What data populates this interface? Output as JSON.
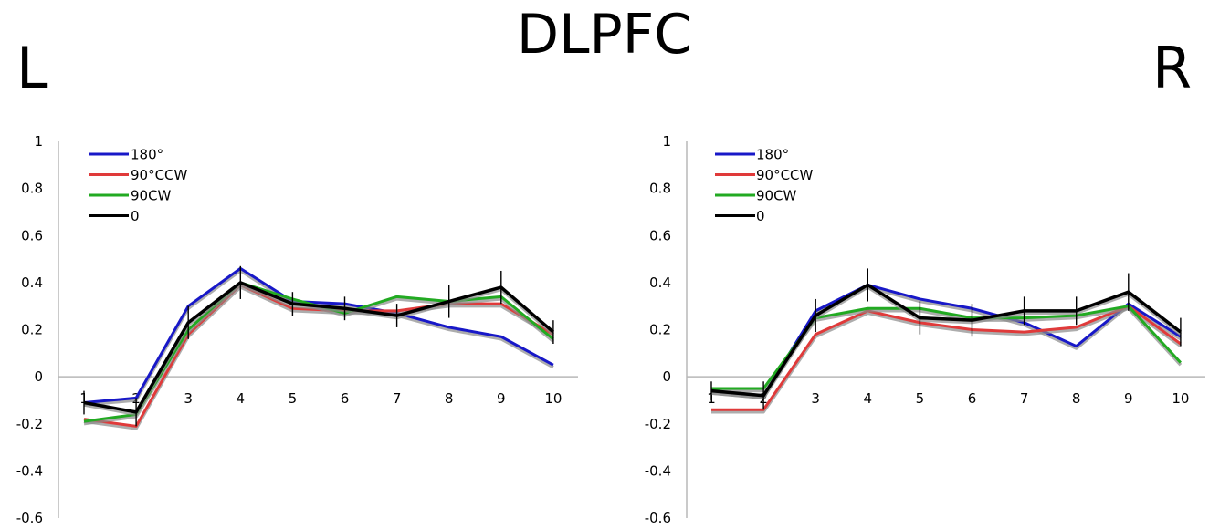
{
  "title": "DLPFC",
  "side_labels": {
    "left": "L",
    "right": "R"
  },
  "colors": {
    "180°": "#1818c8",
    "90°CCW": "#e03a3a",
    "90CW": "#22aa22",
    "0": "#000000",
    "shadow": "#8a8a8a"
  },
  "chart_data": [
    {
      "type": "line",
      "panel": "L",
      "x": [
        1,
        2,
        3,
        4,
        5,
        6,
        7,
        8,
        9,
        10
      ],
      "ylim": [
        -0.6,
        1
      ],
      "yticks": [
        "1",
        "0.8",
        "0.6",
        "0.4",
        "0.2",
        "0",
        "-0.2",
        "-0.4",
        "-0.6"
      ],
      "xticks": [
        "1",
        "2",
        "3",
        "4",
        "5",
        "6",
        "7",
        "8",
        "9",
        "10"
      ],
      "legend_position": "top-left",
      "series": [
        {
          "name": "180°",
          "values": [
            -0.11,
            -0.09,
            0.3,
            0.46,
            0.32,
            0.31,
            0.27,
            0.21,
            0.17,
            0.05
          ]
        },
        {
          "name": "90°CCW",
          "values": [
            -0.18,
            -0.21,
            0.18,
            0.39,
            0.29,
            0.28,
            0.28,
            0.31,
            0.31,
            0.18
          ]
        },
        {
          "name": "90CW",
          "values": [
            -0.19,
            -0.16,
            0.2,
            0.4,
            0.33,
            0.27,
            0.34,
            0.32,
            0.34,
            0.16
          ]
        },
        {
          "name": "0",
          "values": [
            -0.11,
            -0.15,
            0.23,
            0.4,
            0.31,
            0.29,
            0.26,
            0.32,
            0.38,
            0.19
          ]
        }
      ],
      "error": [
        0.05,
        0.06,
        0.07,
        0.07,
        0.05,
        0.05,
        0.05,
        0.07,
        0.07,
        0.05
      ]
    },
    {
      "type": "line",
      "panel": "R",
      "x": [
        1,
        2,
        3,
        4,
        5,
        6,
        7,
        8,
        9,
        10
      ],
      "ylim": [
        -0.6,
        1
      ],
      "yticks": [
        "1",
        "0.8",
        "0.6",
        "0.4",
        "0.2",
        "0",
        "-0.2",
        "-0.4",
        "-0.6"
      ],
      "xticks": [
        "1",
        "2",
        "3",
        "4",
        "5",
        "6",
        "7",
        "8",
        "9",
        "10"
      ],
      "legend_position": "top-left",
      "series": [
        {
          "name": "180°",
          "values": [
            -0.06,
            -0.08,
            0.28,
            0.39,
            0.33,
            0.29,
            0.23,
            0.13,
            0.31,
            0.17
          ]
        },
        {
          "name": "90°CCW",
          "values": [
            -0.14,
            -0.14,
            0.18,
            0.28,
            0.23,
            0.2,
            0.19,
            0.21,
            0.3,
            0.14
          ]
        },
        {
          "name": "90CW",
          "values": [
            -0.05,
            -0.05,
            0.25,
            0.29,
            0.29,
            0.25,
            0.25,
            0.26,
            0.3,
            0.06
          ]
        },
        {
          "name": "0",
          "values": [
            -0.06,
            -0.08,
            0.26,
            0.39,
            0.25,
            0.24,
            0.28,
            0.28,
            0.36,
            0.19
          ]
        }
      ],
      "error": [
        0.04,
        0.06,
        0.07,
        0.07,
        0.07,
        0.07,
        0.06,
        0.06,
        0.08,
        0.06
      ]
    }
  ]
}
